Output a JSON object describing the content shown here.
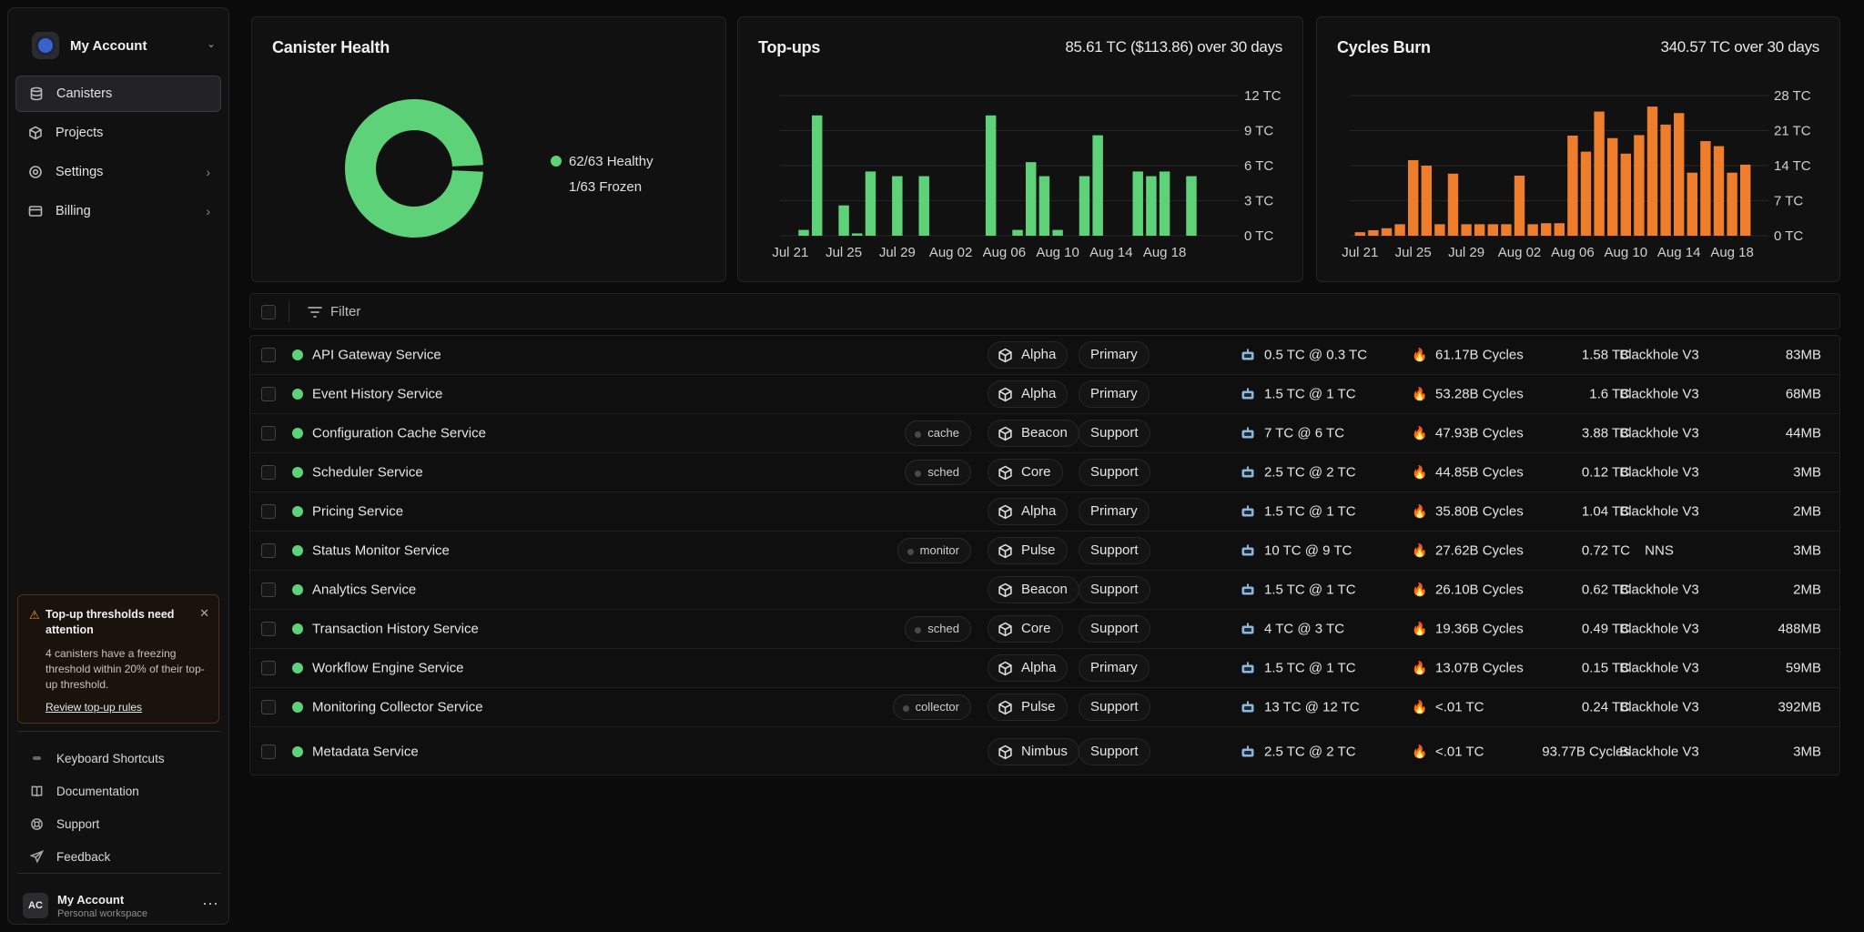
{
  "sidebar": {
    "account_title": "My Account",
    "nav": [
      {
        "label": "Canisters",
        "icon": "database-icon",
        "active": true
      },
      {
        "label": "Projects",
        "icon": "cube-icon"
      },
      {
        "label": "Settings",
        "icon": "settings-icon"
      },
      {
        "label": "Billing",
        "icon": "card-icon"
      }
    ],
    "alert": {
      "title": "Top-up thresholds need attention",
      "body": "4 canisters have a freezing threshold within 20% of their top-up threshold.",
      "link": "Review top-up rules"
    },
    "footer": [
      {
        "label": "Keyboard Shortcuts",
        "icon": "keyboard-icon"
      },
      {
        "label": "Documentation",
        "icon": "book-icon"
      },
      {
        "label": "Support",
        "icon": "lifebuoy-icon"
      },
      {
        "label": "Feedback",
        "icon": "send-icon"
      }
    ],
    "user": {
      "initials": "AC",
      "name": "My Account",
      "workspace": "Personal workspace"
    }
  },
  "health": {
    "title": "Canister Health",
    "healthy": "62/63 Healthy",
    "frozen": "1/63 Frozen",
    "chart_data": {
      "type": "pie",
      "labels": [
        "Healthy",
        "Frozen"
      ],
      "values": [
        62,
        1
      ],
      "colors": [
        "#5dd278",
        "#111112"
      ]
    }
  },
  "topups": {
    "title": "Top-ups",
    "summary": "85.61 TC ($113.86) over 30 days",
    "chart_data": {
      "type": "bar",
      "color": "#5dd278",
      "ylabel_unit": "TC",
      "ylim": [
        0,
        12
      ],
      "yticks": [
        "0 TC",
        "3 TC",
        "6 TC",
        "9 TC",
        "12 TC"
      ],
      "xticks": [
        "Jul 21",
        "Jul 25",
        "Jul 29",
        "Aug 02",
        "Aug 06",
        "Aug 10",
        "Aug 14",
        "Aug 18"
      ],
      "values": [
        0,
        0.5,
        10.3,
        0,
        2.6,
        0.2,
        5.5,
        0,
        5.1,
        0,
        5.1,
        0,
        0,
        0,
        0,
        10.3,
        0,
        0.5,
        6.3,
        5.1,
        0.5,
        0,
        5.1,
        8.6,
        0,
        0,
        5.5,
        5.1,
        5.5,
        0,
        5.1,
        0
      ]
    }
  },
  "burn": {
    "title": "Cycles Burn",
    "summary": "340.57 TC over 30 days",
    "chart_data": {
      "type": "bar",
      "color": "#ef7e2c",
      "ylabel_unit": "TC",
      "ylim": [
        0,
        28
      ],
      "yticks": [
        "0 TC",
        "7 TC",
        "14 TC",
        "21 TC",
        "28 TC"
      ],
      "xticks": [
        "Jul 21",
        "Jul 25",
        "Jul 29",
        "Aug 02",
        "Aug 06",
        "Aug 10",
        "Aug 14",
        "Aug 18"
      ],
      "values": [
        0.7,
        1.1,
        1.5,
        2.3,
        15.1,
        14.0,
        2.3,
        12.4,
        2.3,
        2.3,
        2.3,
        2.3,
        12.0,
        2.3,
        2.5,
        2.5,
        20.0,
        16.8,
        24.8,
        19.5,
        16.4,
        20.1,
        25.8,
        22.2,
        24.5,
        12.6,
        18.9,
        17.9,
        12.6,
        14.2
      ]
    }
  },
  "filter": {
    "label": "Filter"
  },
  "rows": [
    {
      "name": "API Gateway Service",
      "tag": "",
      "project": "Alpha",
      "role": "Primary",
      "topup": "0.5 TC @ 0.3 TC",
      "cycles": "61.17B Cycles",
      "total": "1.58 TC",
      "controller": "Blackhole V3",
      "memory": "83MB"
    },
    {
      "name": "Event History Service",
      "tag": "",
      "project": "Alpha",
      "role": "Primary",
      "topup": "1.5 TC @ 1 TC",
      "cycles": "53.28B Cycles",
      "total": "1.6 TC",
      "controller": "Blackhole V3",
      "memory": "68MB"
    },
    {
      "name": "Configuration Cache Service",
      "tag": "cache",
      "project": "Beacon",
      "role": "Support",
      "topup": "7 TC @ 6 TC",
      "cycles": "47.93B Cycles",
      "total": "3.88 TC",
      "controller": "Blackhole V3",
      "memory": "44MB"
    },
    {
      "name": "Scheduler Service",
      "tag": "sched",
      "project": "Core",
      "role": "Support",
      "topup": "2.5 TC @ 2 TC",
      "cycles": "44.85B Cycles",
      "total": "0.12 TC",
      "controller": "Blackhole V3",
      "memory": "3MB"
    },
    {
      "name": "Pricing Service",
      "tag": "",
      "project": "Alpha",
      "role": "Primary",
      "topup": "1.5 TC @ 1 TC",
      "cycles": "35.80B Cycles",
      "total": "1.04 TC",
      "controller": "Blackhole V3",
      "memory": "2MB"
    },
    {
      "name": "Status Monitor Service",
      "tag": "monitor",
      "project": "Pulse",
      "role": "Support",
      "topup": "10 TC @ 9 TC",
      "cycles": "27.62B Cycles",
      "total": "0.72 TC",
      "controller": "NNS",
      "memory": "3MB"
    },
    {
      "name": "Analytics Service",
      "tag": "",
      "project": "Beacon",
      "role": "Support",
      "topup": "1.5 TC @ 1 TC",
      "cycles": "26.10B Cycles",
      "total": "0.62 TC",
      "controller": "Blackhole V3",
      "memory": "2MB"
    },
    {
      "name": "Transaction History Service",
      "tag": "sched",
      "project": "Core",
      "role": "Support",
      "topup": "4 TC @ 3 TC",
      "cycles": "19.36B Cycles",
      "total": "0.49 TC",
      "controller": "Blackhole V3",
      "memory": "488MB"
    },
    {
      "name": "Workflow Engine Service",
      "tag": "",
      "project": "Alpha",
      "role": "Primary",
      "topup": "1.5 TC @ 1 TC",
      "cycles": "13.07B Cycles",
      "total": "0.15 TC",
      "controller": "Blackhole V3",
      "memory": "59MB"
    },
    {
      "name": "Monitoring Collector Service",
      "tag": "collector",
      "project": "Pulse",
      "role": "Support",
      "topup": "13 TC @ 12 TC",
      "cycles": "<.01 TC",
      "total": "0.24 TC",
      "controller": "Blackhole V3",
      "memory": "392MB"
    },
    {
      "name": "Metadata Service",
      "tag": "",
      "project": "Nimbus",
      "role": "Support",
      "topup": "2.5 TC @ 2 TC",
      "cycles": "<.01 TC",
      "total": "93.77B Cycles",
      "controller": "Blackhole V3",
      "memory": "3MB"
    }
  ]
}
